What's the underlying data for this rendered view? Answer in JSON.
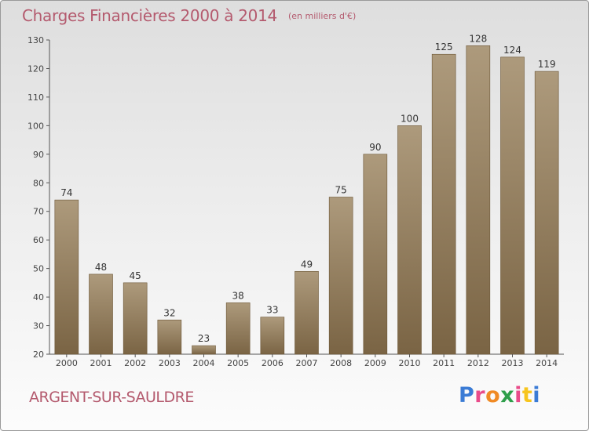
{
  "header": {
    "title": "Charges Financières 2000 à 2014",
    "subtitle": "(en milliers d'€)"
  },
  "footer": {
    "town": "ARGENT-SUR-SAULDRE",
    "brand_letters": [
      "P",
      "r",
      "o",
      "x",
      "i",
      "t",
      "i"
    ],
    "brand_colors": [
      "#3a7bd5",
      "#e94b8a",
      "#f08a24",
      "#2e9e4a",
      "#e94b8a",
      "#f7c51e",
      "#3a7bd5"
    ]
  },
  "chart_data": {
    "type": "bar",
    "title": "Charges Financières 2000 à 2014",
    "categories": [
      "2000",
      "2001",
      "2002",
      "2003",
      "2004",
      "2005",
      "2006",
      "2007",
      "2008",
      "2009",
      "2010",
      "2011",
      "2012",
      "2013",
      "2014"
    ],
    "values": [
      74,
      48,
      45,
      32,
      23,
      38,
      33,
      49,
      75,
      90,
      100,
      125,
      128,
      124,
      119
    ],
    "ylim": [
      20,
      130
    ],
    "yticks": [
      20,
      30,
      40,
      50,
      60,
      70,
      80,
      90,
      100,
      110,
      120,
      130
    ],
    "grid": false,
    "bar_color": "#9a8668"
  }
}
